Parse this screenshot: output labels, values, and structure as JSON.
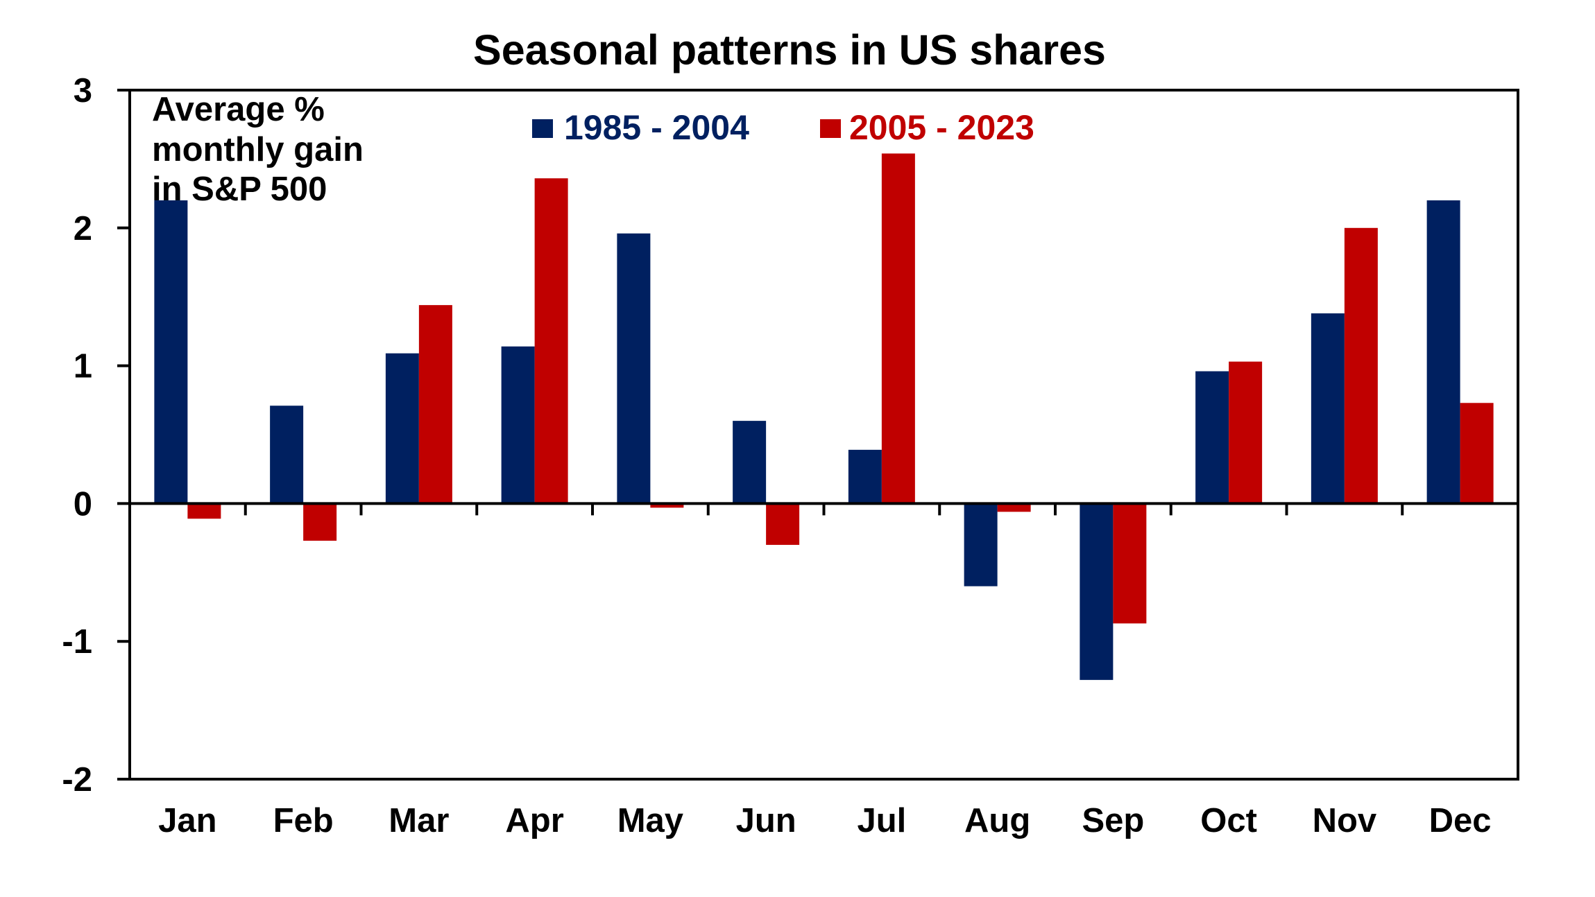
{
  "chart_data": {
    "type": "bar",
    "title": "Seasonal patterns in US shares",
    "annotation": [
      "Average %",
      "monthly gain",
      "in S&P 500"
    ],
    "xlabel": "",
    "ylabel": "Average % monthly gain in S&P 500",
    "categories": [
      "Jan",
      "Feb",
      "Mar",
      "Apr",
      "May",
      "Jun",
      "Jul",
      "Aug",
      "Sep",
      "Oct",
      "Nov",
      "Dec"
    ],
    "series": [
      {
        "name": "1985 - 2004",
        "color": "#002060",
        "values": [
          2.2,
          0.71,
          1.09,
          1.14,
          1.96,
          0.6,
          0.39,
          -0.6,
          -1.28,
          0.96,
          1.38,
          2.2
        ]
      },
      {
        "name": "2005 - 2023",
        "color": "#C00000",
        "values": [
          -0.11,
          -0.27,
          1.44,
          2.36,
          -0.03,
          -0.3,
          2.54,
          -0.06,
          -0.87,
          1.03,
          2.0,
          0.73
        ]
      }
    ],
    "ylim": [
      -2,
      3
    ],
    "yticks": [
      3,
      2,
      1,
      0,
      -1,
      -2
    ],
    "ytick_labels": [
      "3",
      "2",
      "1",
      "0",
      "-1",
      "-2"
    ],
    "grid": false,
    "legend_position": "top-center"
  }
}
